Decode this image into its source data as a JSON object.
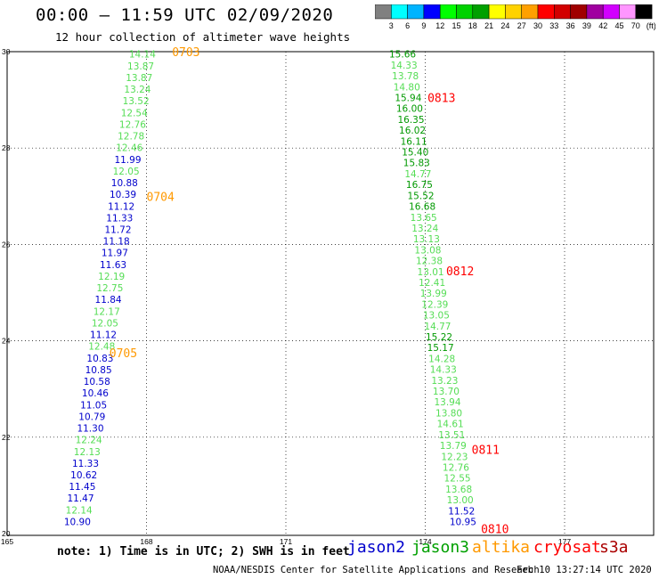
{
  "title": "00:00 – 11:59 UTC 02/09/2020",
  "subtitle": "12 hour collection of altimeter wave heights",
  "scale": {
    "colors": [
      "#808080",
      "#00ffff",
      "#00b4ff",
      "#0000ff",
      "#00ff00",
      "#00d200",
      "#00a000",
      "#ffff00",
      "#ffd200",
      "#ffa000",
      "#ff0000",
      "#d20000",
      "#a00000",
      "#a000a0",
      "#d200ff",
      "#ff96ff",
      "#000000"
    ],
    "labels": [
      "3",
      "6",
      "9",
      "12",
      "15",
      "18",
      "21",
      "24",
      "27",
      "30",
      "33",
      "36",
      "39",
      "42",
      "45",
      "70"
    ],
    "unit": "(ft)"
  },
  "note": "note:  1) Time is in UTC;  2) SWH is in feet",
  "legend": [
    {
      "label": "jason2",
      "color": "#0000cc"
    },
    {
      "label": "jason3",
      "color": "#00a000"
    },
    {
      "label": "altika",
      "color": "#ff9900"
    },
    {
      "label": "cryosat",
      "color": "#ff0000"
    },
    {
      "label": "s3a",
      "color": "#aa0000"
    }
  ],
  "footer_left": "NOAA/NESDIS Center for Satellite Applications and Research",
  "footer_right": "Feb 10 13:27:14 UTC 2020",
  "chart_data": {
    "type": "scatter",
    "xlim": [
      165,
      177
    ],
    "ylim": [
      20,
      30
    ],
    "x_ticks": [
      "165",
      "168",
      "171",
      "174",
      "177"
    ],
    "y_ticks": [
      "20",
      "22",
      "24",
      "26",
      "28",
      "30"
    ],
    "grid": true,
    "colors": {
      "jason2": "#0000cc",
      "jason3_light": "#55dd55",
      "jason3_dark": "#009900",
      "altika": "#ff9900",
      "cryosat": "#ff0000"
    },
    "tracks": [
      {
        "x0": 166.8,
        "y0": 20.25,
        "x1": 168.2,
        "y1": 29.95,
        "points": [
          {
            "v": "10.90",
            "c": "jason2"
          },
          {
            "v": "12.14",
            "c": "jason3_light"
          },
          {
            "v": "11.47",
            "c": "jason2"
          },
          {
            "v": "11.45",
            "c": "jason2"
          },
          {
            "v": "10.62",
            "c": "jason2"
          },
          {
            "v": "11.33",
            "c": "jason2"
          },
          {
            "v": "12.13",
            "c": "jason3_light"
          },
          {
            "v": "12.24",
            "c": "jason3_light"
          },
          {
            "v": "11.30",
            "c": "jason2"
          },
          {
            "v": "10.79",
            "c": "jason2"
          },
          {
            "v": "11.05",
            "c": "jason2"
          },
          {
            "v": "10.46",
            "c": "jason2"
          },
          {
            "v": "10.58",
            "c": "jason2"
          },
          {
            "v": "10.85",
            "c": "jason2"
          },
          {
            "v": "10.83",
            "c": "jason2"
          },
          {
            "v": "12.48",
            "c": "jason3_light"
          },
          {
            "v": "11.12",
            "c": "jason2"
          },
          {
            "v": "12.05",
            "c": "jason3_light"
          },
          {
            "v": "12.17",
            "c": "jason3_light"
          },
          {
            "v": "11.84",
            "c": "jason2"
          },
          {
            "v": "12.75",
            "c": "jason3_light"
          },
          {
            "v": "12.19",
            "c": "jason3_light"
          },
          {
            "v": "11.63",
            "c": "jason2"
          },
          {
            "v": "11.97",
            "c": "jason2"
          },
          {
            "v": "11.18",
            "c": "jason2"
          },
          {
            "v": "11.72",
            "c": "jason2"
          },
          {
            "v": "11.33",
            "c": "jason2"
          },
          {
            "v": "11.12",
            "c": "jason2"
          },
          {
            "v": "10.39",
            "c": "jason2"
          },
          {
            "v": "10.88",
            "c": "jason2"
          },
          {
            "v": "12.05",
            "c": "jason3_light"
          },
          {
            "v": "11.99",
            "c": "jason2"
          },
          {
            "v": "12.46",
            "c": "jason3_light"
          },
          {
            "v": "12.78",
            "c": "jason3_light"
          },
          {
            "v": "12.76",
            "c": "jason3_light"
          },
          {
            "v": "12.54",
            "c": "jason3_light"
          },
          {
            "v": "13.52",
            "c": "jason3_light"
          },
          {
            "v": "13.24",
            "c": "jason3_light"
          },
          {
            "v": "13.87",
            "c": "jason3_light"
          },
          {
            "v": "13.87",
            "c": "jason3_light"
          },
          {
            "v": "14.14",
            "c": "jason3_light"
          }
        ]
      },
      {
        "x0": 175.1,
        "y0": 20.25,
        "x1": 173.8,
        "y1": 29.95,
        "points": [
          {
            "v": "10.95",
            "c": "jason2"
          },
          {
            "v": "11.52",
            "c": "jason2"
          },
          {
            "v": "13.00",
            "c": "jason3_light"
          },
          {
            "v": "13.68",
            "c": "jason3_light"
          },
          {
            "v": "12.55",
            "c": "jason3_light"
          },
          {
            "v": "12.76",
            "c": "jason3_light"
          },
          {
            "v": "12.23",
            "c": "jason3_light"
          },
          {
            "v": "13.79",
            "c": "jason3_light"
          },
          {
            "v": "13.51",
            "c": "jason3_light"
          },
          {
            "v": "14.61",
            "c": "jason3_light"
          },
          {
            "v": "13.80",
            "c": "jason3_light"
          },
          {
            "v": "13.94",
            "c": "jason3_light"
          },
          {
            "v": "13.70",
            "c": "jason3_light"
          },
          {
            "v": "13.23",
            "c": "jason3_light"
          },
          {
            "v": "14.33",
            "c": "jason3_light"
          },
          {
            "v": "14.28",
            "c": "jason3_light"
          },
          {
            "v": "15.17",
            "c": "jason3_dark"
          },
          {
            "v": "15.22",
            "c": "jason3_dark"
          },
          {
            "v": "14.77",
            "c": "jason3_light"
          },
          {
            "v": "13.05",
            "c": "jason3_light"
          },
          {
            "v": "12.39",
            "c": "jason3_light"
          },
          {
            "v": "13.99",
            "c": "jason3_light"
          },
          {
            "v": "12.41",
            "c": "jason3_light"
          },
          {
            "v": "13.01",
            "c": "jason3_light"
          },
          {
            "v": "12.38",
            "c": "jason3_light"
          },
          {
            "v": "13.08",
            "c": "jason3_light"
          },
          {
            "v": "13.13",
            "c": "jason3_light"
          },
          {
            "v": "13.24",
            "c": "jason3_light"
          },
          {
            "v": "13.65",
            "c": "jason3_light"
          },
          {
            "v": "16.68",
            "c": "jason3_dark"
          },
          {
            "v": "15.52",
            "c": "jason3_dark"
          },
          {
            "v": "16.75",
            "c": "jason3_dark"
          },
          {
            "v": "14.77",
            "c": "jason3_light"
          },
          {
            "v": "15.83",
            "c": "jason3_dark"
          },
          {
            "v": "15.40",
            "c": "jason3_dark"
          },
          {
            "v": "16.11",
            "c": "jason3_dark"
          },
          {
            "v": "16.02",
            "c": "jason3_dark"
          },
          {
            "v": "16.35",
            "c": "jason3_dark"
          },
          {
            "v": "16.00",
            "c": "jason3_dark"
          },
          {
            "v": "15.94",
            "c": "jason3_dark"
          },
          {
            "v": "14.80",
            "c": "jason3_light"
          },
          {
            "v": "13.78",
            "c": "jason3_light"
          },
          {
            "v": "14.33",
            "c": "jason3_light"
          },
          {
            "v": "15.66",
            "c": "jason3_dark"
          }
        ]
      }
    ],
    "time_labels": [
      {
        "text": "0703",
        "x": 168.55,
        "y": 30.0,
        "c": "altika"
      },
      {
        "text": "0704",
        "x": 168.0,
        "y": 27.0,
        "c": "altika"
      },
      {
        "text": "0705",
        "x": 167.2,
        "y": 23.75,
        "c": "altika"
      },
      {
        "text": "0813",
        "x": 174.05,
        "y": 29.05,
        "c": "cryosat"
      },
      {
        "text": "0812",
        "x": 174.45,
        "y": 25.45,
        "c": "cryosat"
      },
      {
        "text": "0811",
        "x": 175.0,
        "y": 21.75,
        "c": "cryosat"
      },
      {
        "text": "0810",
        "x": 175.2,
        "y": 20.1,
        "c": "cryosat"
      }
    ]
  }
}
